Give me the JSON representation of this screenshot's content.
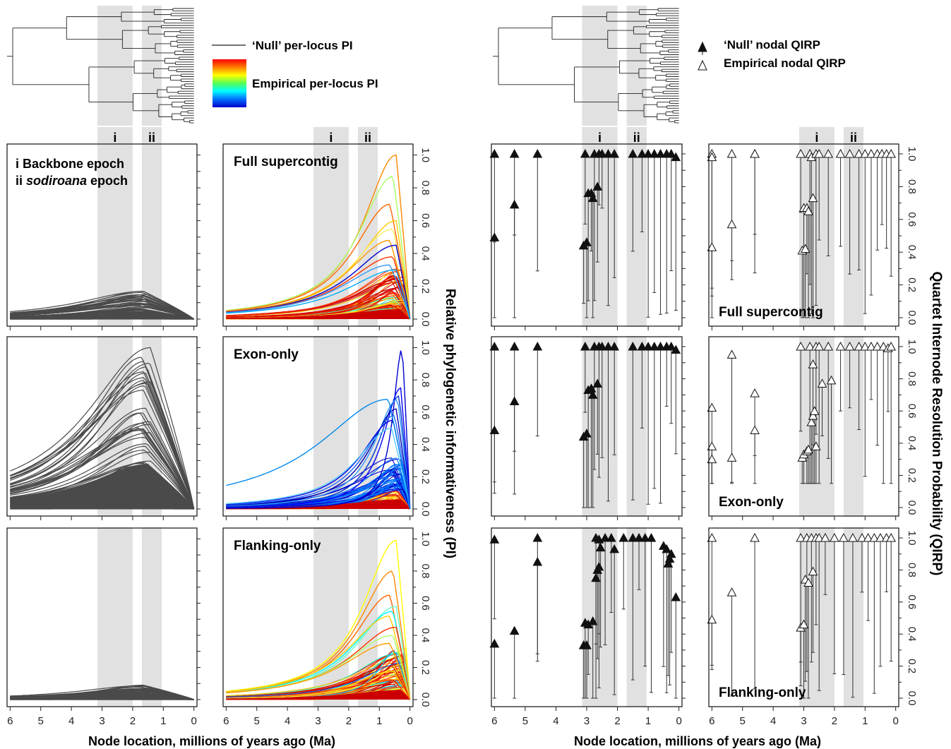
{
  "chart_data": {
    "type": "line",
    "xlabel": "Node location, millions of years ago (Ma)",
    "x_ticks": [
      "6",
      "5",
      "4",
      "3",
      "2",
      "1",
      "0"
    ],
    "xlim": [
      6.1,
      -0.1
    ],
    "epochs": [
      {
        "label": "i",
        "name": "Backbone epoch",
        "range_ma": [
          3.15,
          2.0
        ]
      },
      {
        "label": "ii",
        "name": "sodiroana epoch",
        "range_ma": [
          1.7,
          1.05
        ]
      }
    ],
    "epoch_legend": {
      "i_text": "i  Backbone epoch",
      "ii_prefix": "ii ",
      "ii_name": "sodiroana",
      "ii_suffix": " epoch"
    },
    "pi": {
      "ylabel": "Relative phylogenetic informativeness (PI)",
      "ylim": [
        0,
        1
      ],
      "y_ticks": [
        "0.0",
        "0.2",
        "0.4",
        "0.6",
        "0.8",
        "1.0"
      ],
      "legend_null": "‘Null’ per-locus PI",
      "legend_emp": "Empirical per-locus PI",
      "null_color": "#4a4a4a",
      "rows": [
        {
          "label": "Full supercontig",
          "null_peak_max": 0.17,
          "emp_peak_max": 1.0,
          "emp_highlight_peaks": [
            1.0,
            0.87,
            0.7,
            0.6,
            0.55,
            0.48,
            0.45,
            0.38,
            0.33,
            0.3
          ]
        },
        {
          "label": "Exon-only",
          "null_peak_max": 1.0,
          "emp_peak_max": 1.0,
          "emp_highlight_peaks": [
            1.0,
            0.75,
            0.7,
            0.68,
            0.62,
            0.58,
            0.55,
            0.5
          ]
        },
        {
          "label": "Flanking-only",
          "null_peak_max": 0.09,
          "emp_peak_max": 0.99,
          "emp_highlight_peaks": [
            0.99,
            0.8,
            0.65,
            0.58,
            0.55,
            0.52,
            0.45,
            0.4,
            0.35
          ]
        }
      ]
    },
    "qirp": {
      "ylabel": "Quartet Internode Resolution Probability (QIRP)",
      "ylim": [
        -0.02,
        1.05
      ],
      "y_ticks": [
        "0.0",
        "0.2",
        "0.4",
        "0.6",
        "0.8",
        "1.0"
      ],
      "legend_null": "‘Null’ nodal QIRP",
      "legend_emp": "Empirical nodal QIRP",
      "null_color": "#111111",
      "emp_fill": "#ffffff",
      "panels": {
        "null": [
          {
            "points": [
              [
                6.0,
                1.0
              ],
              [
                6.0,
                0.49
              ],
              [
                5.35,
                1.0
              ],
              [
                5.35,
                0.69
              ],
              [
                4.6,
                1.0
              ],
              [
                3.05,
                1.0
              ],
              [
                3.1,
                0.44
              ],
              [
                3.0,
                0.46
              ],
              [
                2.95,
                0.76
              ],
              [
                2.85,
                0.76
              ],
              [
                2.8,
                0.73
              ],
              [
                2.65,
                0.8
              ],
              [
                2.75,
                1.0
              ],
              [
                2.6,
                1.0
              ],
              [
                2.5,
                1.0
              ],
              [
                2.3,
                1.0
              ],
              [
                2.1,
                1.0
              ],
              [
                1.5,
                1.0
              ],
              [
                1.2,
                1.0
              ],
              [
                1.0,
                1.0
              ],
              [
                0.8,
                1.0
              ],
              [
                0.6,
                1.0
              ],
              [
                0.4,
                1.0
              ],
              [
                0.25,
                1.0
              ],
              [
                0.1,
                0.98
              ]
            ]
          },
          {
            "points": [
              [
                6.0,
                1.0
              ],
              [
                6.0,
                0.48
              ],
              [
                5.35,
                1.0
              ],
              [
                5.35,
                0.66
              ],
              [
                4.6,
                1.0
              ],
              [
                3.05,
                1.0
              ],
              [
                3.1,
                0.44
              ],
              [
                3.0,
                0.46
              ],
              [
                2.95,
                0.73
              ],
              [
                2.85,
                0.74
              ],
              [
                2.8,
                0.7
              ],
              [
                2.65,
                0.77
              ],
              [
                2.75,
                1.0
              ],
              [
                2.6,
                1.0
              ],
              [
                2.5,
                1.0
              ],
              [
                2.3,
                1.0
              ],
              [
                2.1,
                1.0
              ],
              [
                1.5,
                1.0
              ],
              [
                1.2,
                1.0
              ],
              [
                1.0,
                1.0
              ],
              [
                0.8,
                1.0
              ],
              [
                0.6,
                1.0
              ],
              [
                0.4,
                1.0
              ],
              [
                0.25,
                1.0
              ],
              [
                0.1,
                0.98
              ]
            ]
          },
          {
            "points": [
              [
                6.0,
                0.99
              ],
              [
                6.0,
                0.34
              ],
              [
                5.35,
                0.42
              ],
              [
                4.6,
                1.0
              ],
              [
                4.6,
                0.85
              ],
              [
                3.1,
                0.33
              ],
              [
                3.0,
                0.33
              ],
              [
                3.05,
                0.47
              ],
              [
                2.95,
                0.46
              ],
              [
                2.8,
                0.48
              ],
              [
                2.7,
                0.75
              ],
              [
                2.65,
                0.8
              ],
              [
                2.6,
                0.82
              ],
              [
                2.55,
                0.94
              ],
              [
                2.7,
                1.0
              ],
              [
                2.6,
                0.99
              ],
              [
                2.4,
                1.0
              ],
              [
                2.2,
                1.0
              ],
              [
                2.1,
                0.93
              ],
              [
                1.8,
                1.0
              ],
              [
                1.5,
                1.0
              ],
              [
                1.3,
                1.0
              ],
              [
                1.1,
                1.0
              ],
              [
                0.9,
                1.0
              ],
              [
                0.5,
                0.95
              ],
              [
                0.4,
                0.93
              ],
              [
                0.35,
                0.84
              ],
              [
                0.3,
                0.87
              ],
              [
                0.25,
                0.9
              ],
              [
                0.1,
                0.63
              ]
            ]
          }
        ],
        "emp": [
          {
            "points": [
              [
                6.0,
                1.0
              ],
              [
                6.0,
                0.98
              ],
              [
                6.0,
                0.43
              ],
              [
                5.35,
                0.57
              ],
              [
                5.35,
                1.0
              ],
              [
                4.6,
                1.0
              ],
              [
                4.6,
                1.0
              ],
              [
                3.1,
                1.0
              ],
              [
                3.05,
                0.41
              ],
              [
                2.95,
                0.42
              ],
              [
                3.0,
                0.67
              ],
              [
                2.9,
                0.67
              ],
              [
                2.85,
                0.65
              ],
              [
                2.7,
                0.73
              ],
              [
                2.8,
                1.0
              ],
              [
                2.75,
                0.98
              ],
              [
                2.6,
                1.0
              ],
              [
                2.5,
                1.0
              ],
              [
                2.2,
                1.0
              ],
              [
                1.8,
                1.0
              ],
              [
                1.5,
                1.0
              ],
              [
                1.2,
                1.0
              ],
              [
                1.0,
                1.0
              ],
              [
                0.8,
                1.0
              ],
              [
                0.6,
                1.0
              ],
              [
                0.45,
                1.0
              ],
              [
                0.3,
                1.0
              ],
              [
                0.15,
                1.0
              ]
            ]
          },
          {
            "points": [
              [
                6.0,
                0.62
              ],
              [
                6.0,
                0.38
              ],
              [
                6.0,
                0.3
              ],
              [
                5.35,
                0.95
              ],
              [
                5.35,
                0.31
              ],
              [
                4.6,
                0.71
              ],
              [
                4.6,
                0.48
              ],
              [
                3.1,
                1.0
              ],
              [
                3.05,
                0.31
              ],
              [
                3.0,
                0.33
              ],
              [
                2.9,
                0.35
              ],
              [
                2.85,
                0.36
              ],
              [
                2.75,
                0.53
              ],
              [
                2.7,
                0.57
              ],
              [
                2.65,
                0.6
              ],
              [
                2.6,
                0.38
              ],
              [
                2.7,
                0.89
              ],
              [
                2.8,
                1.0
              ],
              [
                2.6,
                1.0
              ],
              [
                2.4,
                0.77
              ],
              [
                2.1,
                0.79
              ],
              [
                2.5,
                1.0
              ],
              [
                2.2,
                1.0
              ],
              [
                1.8,
                1.0
              ],
              [
                1.5,
                1.0
              ],
              [
                1.2,
                1.0
              ],
              [
                1.0,
                1.0
              ],
              [
                0.8,
                1.0
              ],
              [
                0.6,
                1.0
              ],
              [
                0.4,
                1.0
              ],
              [
                0.25,
                0.99
              ],
              [
                0.15,
                1.0
              ]
            ]
          },
          {
            "points": [
              [
                6.0,
                1.0
              ],
              [
                6.0,
                0.49
              ],
              [
                5.35,
                0.66
              ],
              [
                4.6,
                1.0
              ],
              [
                3.1,
                0.44
              ],
              [
                3.0,
                0.46
              ],
              [
                2.95,
                0.74
              ],
              [
                2.85,
                0.72
              ],
              [
                2.7,
                0.79
              ],
              [
                3.1,
                1.0
              ],
              [
                2.9,
                1.0
              ],
              [
                2.75,
                1.0
              ],
              [
                2.6,
                1.0
              ],
              [
                2.5,
                1.0
              ],
              [
                2.3,
                1.0
              ],
              [
                2.0,
                1.0
              ],
              [
                1.7,
                1.0
              ],
              [
                1.4,
                1.0
              ],
              [
                1.1,
                1.0
              ],
              [
                0.9,
                1.0
              ],
              [
                0.7,
                1.0
              ],
              [
                0.5,
                1.0
              ],
              [
                0.3,
                1.0
              ],
              [
                0.15,
                1.0
              ]
            ]
          }
        ]
      }
    }
  },
  "row_labels": [
    "Full supercontig",
    "Exon-only",
    "Flanking-only"
  ]
}
